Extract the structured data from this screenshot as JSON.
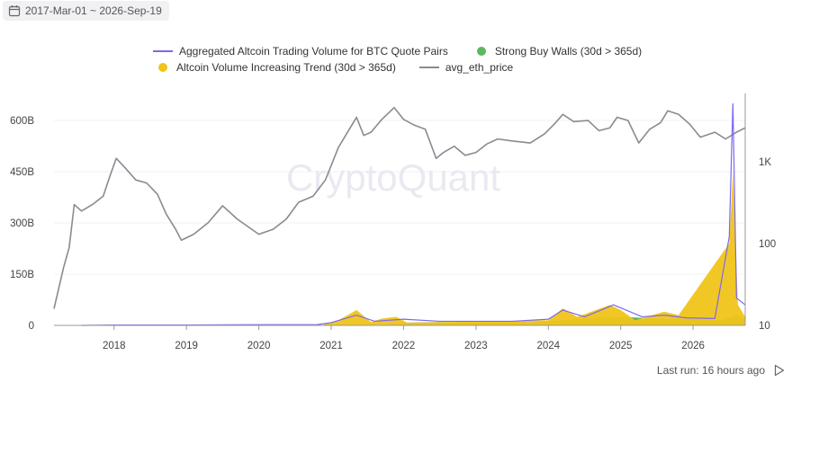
{
  "date_range": {
    "label": "2017-Mar-01 ~ 2026-Sep-19"
  },
  "legend": {
    "volume": "Aggregated Altcoin Trading Volume for BTC Quote Pairs",
    "buy_walls": "Strong Buy Walls (30d > 365d)",
    "increasing": "Altcoin Volume Increasing Trend (30d > 365d)",
    "eth": "avg_eth_price"
  },
  "watermark": "CryptoQuant",
  "footer": {
    "last_run": "Last run: 16 hours ago"
  },
  "colors": {
    "volume": "#7b68ee",
    "buy_walls": "#5cb85c",
    "increasing": "#f0c419",
    "eth": "#8a8a93",
    "watermark": "#e9e9f2"
  },
  "chart_data": {
    "type": "line",
    "x_ticks": [
      "2018",
      "2019",
      "2020",
      "2021",
      "2022",
      "2023",
      "2024",
      "2025",
      "2026"
    ],
    "left_axis": {
      "ticks": [
        "0",
        "150B",
        "300B",
        "450B",
        "600B"
      ],
      "range": [
        0,
        600
      ]
    },
    "right_axis": {
      "ticks": [
        "10",
        "100",
        "1K"
      ],
      "scale": "log"
    },
    "grid": "horizontal",
    "legend_position": "top",
    "series": [
      {
        "name": "avg_eth_price",
        "axis": "right",
        "points": [
          [
            2017.17,
            16
          ],
          [
            2017.3,
            50
          ],
          [
            2017.38,
            90
          ],
          [
            2017.45,
            300
          ],
          [
            2017.55,
            250
          ],
          [
            2017.7,
            300
          ],
          [
            2017.85,
            380
          ],
          [
            2017.95,
            700
          ],
          [
            2018.03,
            1100
          ],
          [
            2018.15,
            850
          ],
          [
            2018.3,
            600
          ],
          [
            2018.45,
            550
          ],
          [
            2018.6,
            400
          ],
          [
            2018.72,
            230
          ],
          [
            2018.85,
            150
          ],
          [
            2018.93,
            110
          ],
          [
            2019.1,
            130
          ],
          [
            2019.3,
            180
          ],
          [
            2019.5,
            290
          ],
          [
            2019.7,
            200
          ],
          [
            2019.9,
            150
          ],
          [
            2020.0,
            130
          ],
          [
            2020.2,
            150
          ],
          [
            2020.38,
            200
          ],
          [
            2020.55,
            320
          ],
          [
            2020.75,
            380
          ],
          [
            2020.92,
            600
          ],
          [
            2021.1,
            1500
          ],
          [
            2021.25,
            2500
          ],
          [
            2021.35,
            3500
          ],
          [
            2021.45,
            2100
          ],
          [
            2021.55,
            2300
          ],
          [
            2021.7,
            3300
          ],
          [
            2021.87,
            4600
          ],
          [
            2022.0,
            3300
          ],
          [
            2022.15,
            2800
          ],
          [
            2022.3,
            2500
          ],
          [
            2022.45,
            1100
          ],
          [
            2022.55,
            1300
          ],
          [
            2022.7,
            1550
          ],
          [
            2022.85,
            1200
          ],
          [
            2023.0,
            1300
          ],
          [
            2023.15,
            1650
          ],
          [
            2023.3,
            1900
          ],
          [
            2023.5,
            1800
          ],
          [
            2023.75,
            1700
          ],
          [
            2023.95,
            2200
          ],
          [
            2024.1,
            3000
          ],
          [
            2024.2,
            3800
          ],
          [
            2024.35,
            3100
          ],
          [
            2024.55,
            3200
          ],
          [
            2024.7,
            2400
          ],
          [
            2024.85,
            2600
          ],
          [
            2024.95,
            3500
          ],
          [
            2025.1,
            3200
          ],
          [
            2025.25,
            1700
          ],
          [
            2025.4,
            2500
          ],
          [
            2025.55,
            3000
          ],
          [
            2025.65,
            4200
          ],
          [
            2025.8,
            3800
          ],
          [
            2025.95,
            2900
          ],
          [
            2026.1,
            2000
          ],
          [
            2026.3,
            2300
          ],
          [
            2026.45,
            1900
          ],
          [
            2026.6,
            2300
          ],
          [
            2026.72,
            2600
          ]
        ]
      },
      {
        "name": "Aggregated Altcoin Trading Volume for BTC Quote Pairs",
        "axis": "left",
        "points": [
          [
            2017.55,
            0
          ],
          [
            2018.0,
            1
          ],
          [
            2019.0,
            1
          ],
          [
            2020.0,
            2
          ],
          [
            2020.8,
            2
          ],
          [
            2021.0,
            8
          ],
          [
            2021.35,
            30
          ],
          [
            2021.6,
            12
          ],
          [
            2022.0,
            18
          ],
          [
            2022.5,
            12
          ],
          [
            2023.0,
            12
          ],
          [
            2023.5,
            12
          ],
          [
            2024.0,
            18
          ],
          [
            2024.2,
            45
          ],
          [
            2024.5,
            25
          ],
          [
            2024.9,
            60
          ],
          [
            2025.3,
            25
          ],
          [
            2025.6,
            30
          ],
          [
            2025.9,
            22
          ],
          [
            2026.3,
            20
          ],
          [
            2026.5,
            260
          ],
          [
            2026.55,
            650
          ],
          [
            2026.6,
            80
          ],
          [
            2026.72,
            60
          ]
        ]
      },
      {
        "name": "Strong Buy Walls (30d > 365d)",
        "axis": "left",
        "type": "area",
        "points": [
          [
            2021.8,
            3
          ],
          [
            2022.0,
            8
          ],
          [
            2022.5,
            10
          ],
          [
            2023.0,
            8
          ],
          [
            2023.5,
            8
          ],
          [
            2024.0,
            12
          ],
          [
            2024.5,
            20
          ],
          [
            2025.0,
            25
          ],
          [
            2025.5,
            20
          ],
          [
            2026.0,
            18
          ],
          [
            2026.4,
            15
          ],
          [
            2026.6,
            30
          ],
          [
            2026.72,
            20
          ]
        ]
      },
      {
        "name": "Altcoin Volume Increasing Trend (30d > 365d)",
        "axis": "left",
        "type": "area",
        "points": [
          [
            2020.9,
            5
          ],
          [
            2021.1,
            15
          ],
          [
            2021.35,
            45
          ],
          [
            2021.55,
            10
          ],
          [
            2021.7,
            20
          ],
          [
            2021.9,
            25
          ],
          [
            2022.05,
            8
          ],
          [
            2024.0,
            15
          ],
          [
            2024.2,
            50
          ],
          [
            2024.4,
            25
          ],
          [
            2024.85,
            60
          ],
          [
            2025.0,
            45
          ],
          [
            2025.2,
            15
          ],
          [
            2025.6,
            40
          ],
          [
            2025.8,
            30
          ],
          [
            2026.5,
            240
          ],
          [
            2026.55,
            450
          ],
          [
            2026.62,
            60
          ],
          [
            2026.72,
            25
          ]
        ]
      }
    ]
  }
}
